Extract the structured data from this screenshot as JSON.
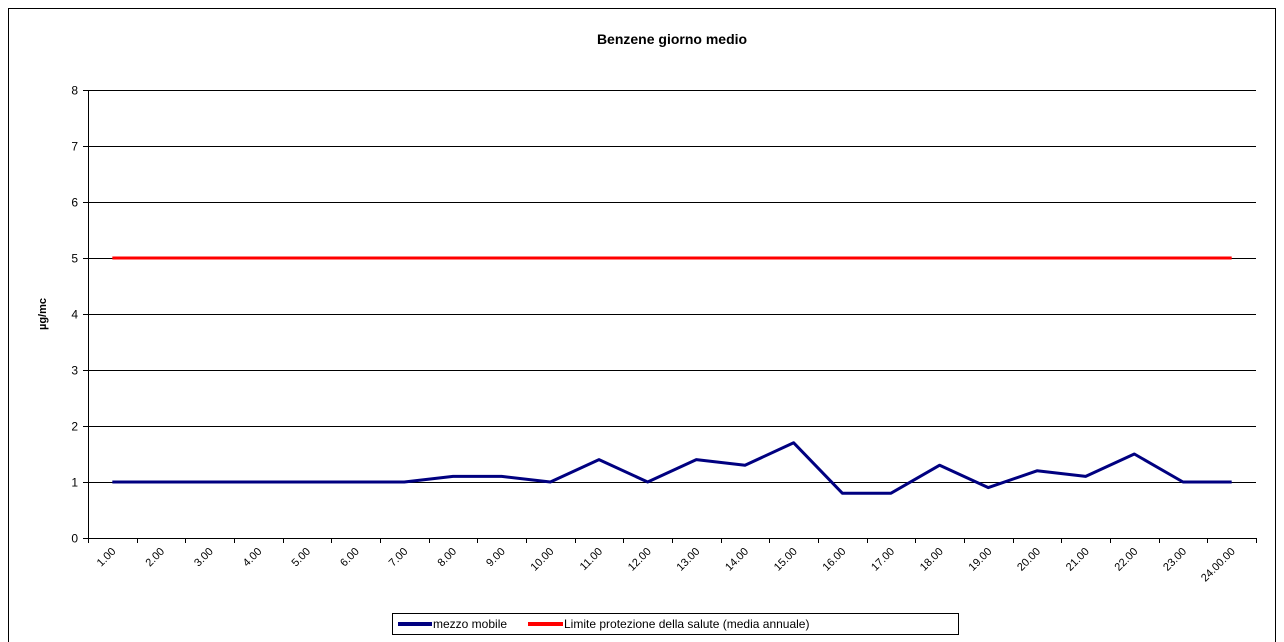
{
  "chart_data": {
    "type": "line",
    "title": "Benzene giorno medio",
    "y_label": "µg/mc",
    "categories": [
      "1.00",
      "2.00",
      "3.00",
      "4.00",
      "5.00",
      "6.00",
      "7.00",
      "8.00",
      "9.00",
      "10.00",
      "11.00",
      "12.00",
      "13.00",
      "14.00",
      "15.00",
      "16.00",
      "17.00",
      "18.00",
      "19.00",
      "20.00",
      "21.00",
      "22.00",
      "23.00",
      "24.00.00"
    ],
    "series": [
      {
        "name": "mezzo mobile",
        "color": "#000080",
        "values": [
          1,
          1,
          1,
          1,
          1,
          1,
          1,
          1.1,
          1.1,
          1,
          1.4,
          1,
          1.4,
          1.3,
          1.7,
          0.8,
          0.8,
          1.3,
          0.9,
          1.2,
          1.1,
          1.5,
          1,
          1
        ]
      },
      {
        "name": "Limite protezione della salute (media annuale)",
        "color": "#ff0000",
        "values": [
          5,
          5,
          5,
          5,
          5,
          5,
          5,
          5,
          5,
          5,
          5,
          5,
          5,
          5,
          5,
          5,
          5,
          5,
          5,
          5,
          5,
          5,
          5,
          5
        ]
      }
    ],
    "ylim": [
      0,
      8
    ],
    "yticks": [
      0,
      1,
      2,
      3,
      4,
      5,
      6,
      7,
      8
    ],
    "grid": true,
    "legend": "bottom"
  }
}
